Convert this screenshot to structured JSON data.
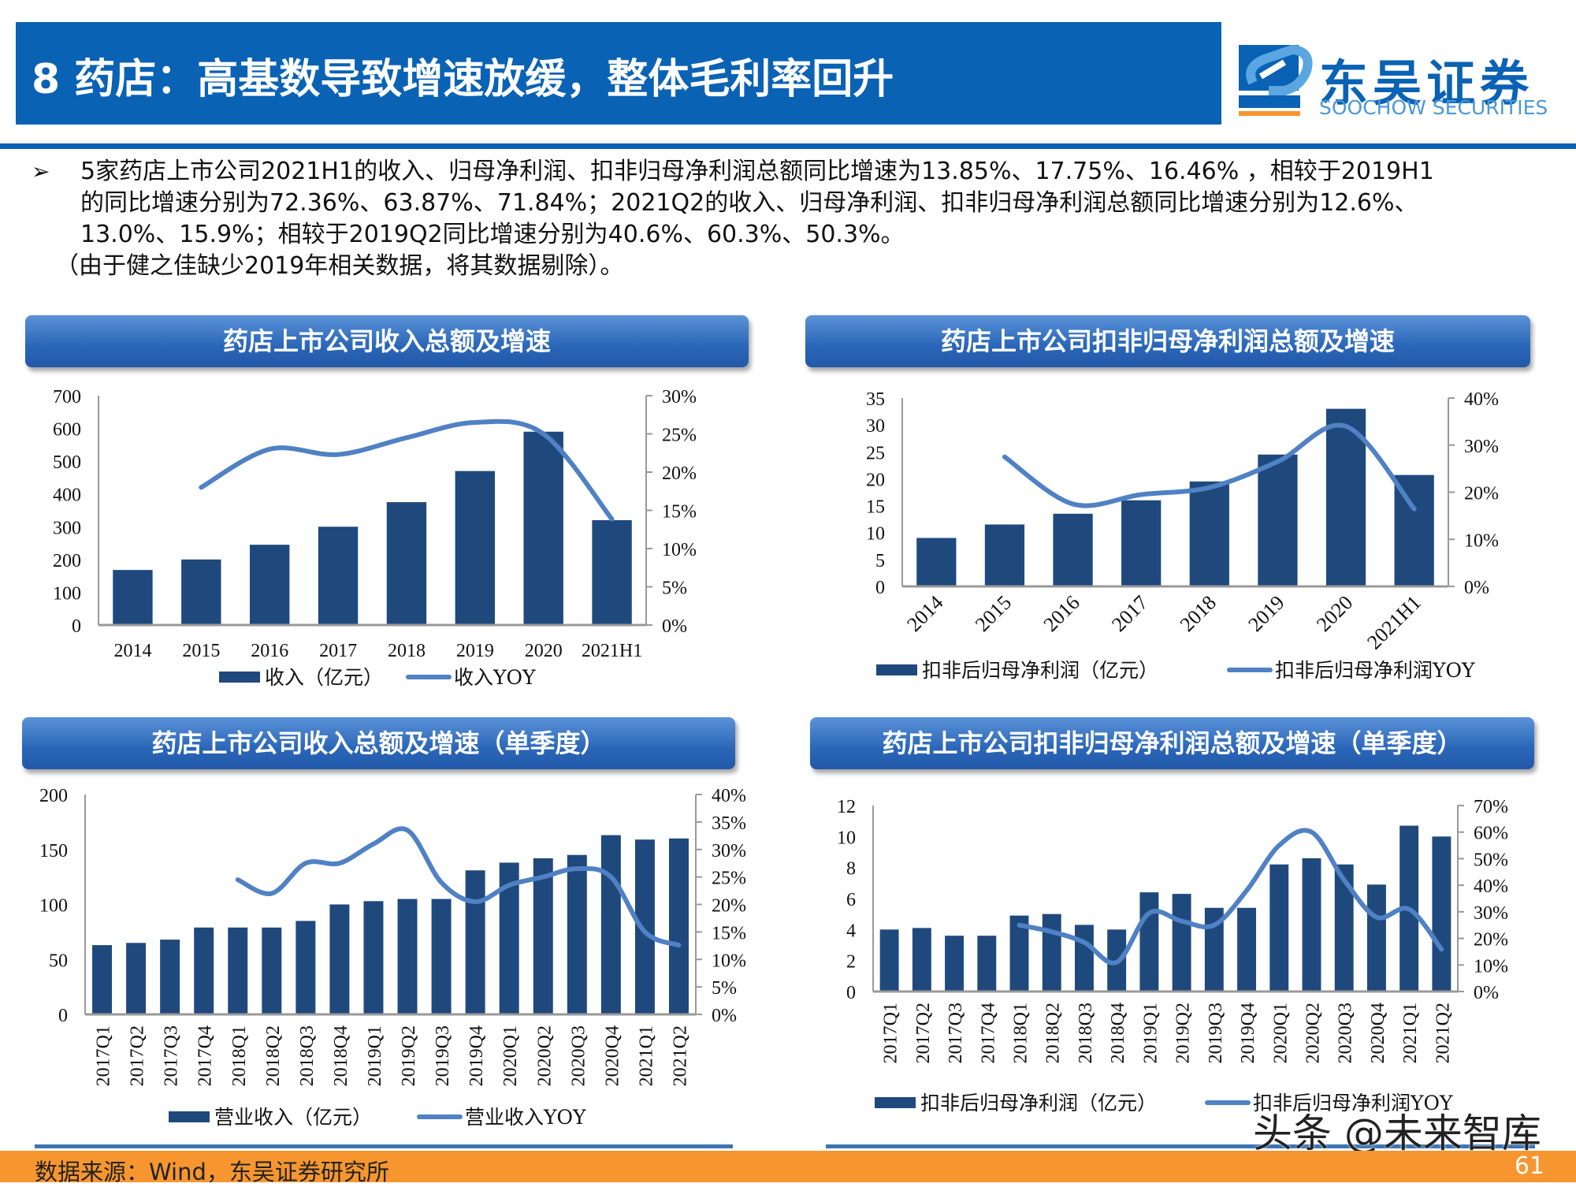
{
  "header": {
    "title": "8 药店：高基数导致增速放缓，整体毛利率回升",
    "logo_cn": "东吴证券",
    "logo_en": "SOOCHOW SECURITIES",
    "logo_mark": "SCS",
    "bullet": "➢"
  },
  "body": {
    "lines": [
      "5家药店上市公司2021H1的收入、归母净利润、扣非归母净利润总额同比增速为13.85%、17.75%、16.46% ，相较于2019H1",
      "的同比增速分别为72.36%、63.87%、71.84%；2021Q2的收入、归母净利润、扣非归母净利润总额同比增速分别为12.6%、",
      "13.0%、15.9%；相较于2019Q2同比增速分别为40.6%、60.3%、50.3%。"
    ],
    "note": "（由于健之佳缺少2019年相关数据，将其数据剔除）。"
  },
  "colors": {
    "bar": "#1f497d",
    "line": "#4f81c4",
    "header": "#0a62b4",
    "footer": "#f7962f"
  },
  "chart_data": [
    {
      "type": "bar+line",
      "title": "药店上市公司收入总额及增速",
      "categories": [
        "2014",
        "2015",
        "2016",
        "2017",
        "2018",
        "2019",
        "2020",
        "2021H1"
      ],
      "series": [
        {
          "name": "收入（亿元）",
          "type": "bar",
          "axis": "left",
          "values": [
            168,
            200,
            245,
            300,
            375,
            470,
            590,
            320
          ]
        },
        {
          "name": "收入YOY",
          "type": "line",
          "axis": "right",
          "values": [
            null,
            18.0,
            23.0,
            22.3,
            24.5,
            26.5,
            25.0,
            13.85
          ]
        }
      ],
      "y_left": {
        "range": [
          0,
          700
        ],
        "ticks": [
          "0",
          "100",
          "200",
          "300",
          "400",
          "500",
          "600",
          "700"
        ]
      },
      "y_right": {
        "range": [
          0,
          30
        ],
        "ticks": [
          "0%",
          "5%",
          "10%",
          "15%",
          "20%",
          "25%",
          "30%"
        ]
      },
      "legend": "bottom"
    },
    {
      "type": "bar+line",
      "title": "药店上市公司扣非归母净利润总额及增速",
      "categories": [
        "2014",
        "2015",
        "2016",
        "2017",
        "2018",
        "2019",
        "2020",
        "2021H1"
      ],
      "series": [
        {
          "name": "扣非后归母净利润（亿元）",
          "type": "bar",
          "axis": "left",
          "values": [
            9.0,
            11.5,
            13.5,
            16.0,
            19.5,
            24.5,
            33.0,
            20.7
          ]
        },
        {
          "name": "扣非后归母净利润YOY",
          "type": "line",
          "axis": "right",
          "values": [
            null,
            27.5,
            17.5,
            19.5,
            21.0,
            26.5,
            34.0,
            16.46
          ]
        }
      ],
      "y_left": {
        "range": [
          0,
          35
        ],
        "ticks": [
          "0",
          "5",
          "10",
          "15",
          "20",
          "25",
          "30",
          "35"
        ]
      },
      "y_right": {
        "range": [
          0,
          40
        ],
        "ticks": [
          "0%",
          "10%",
          "20%",
          "30%",
          "40%"
        ]
      },
      "legend": "bottom"
    },
    {
      "type": "bar+line",
      "title": "药店上市公司收入总额及增速（单季度）",
      "categories": [
        "2017Q1",
        "2017Q2",
        "2017Q3",
        "2017Q4",
        "2018Q1",
        "2018Q2",
        "2018Q3",
        "2018Q4",
        "2019Q1",
        "2019Q2",
        "2019Q3",
        "2019Q4",
        "2020Q1",
        "2020Q2",
        "2020Q3",
        "2020Q4",
        "2021Q1",
        "2021Q2"
      ],
      "series": [
        {
          "name": "营业收入（亿元）",
          "type": "bar",
          "axis": "left",
          "values": [
            63,
            65,
            68,
            79,
            79,
            79,
            85,
            100,
            103,
            105,
            105,
            131,
            138,
            142,
            145,
            163,
            159,
            160
          ]
        },
        {
          "name": "营业收入YOY",
          "type": "line",
          "axis": "right",
          "values": [
            null,
            null,
            null,
            null,
            24.5,
            22.0,
            27.5,
            27.5,
            31.0,
            33.5,
            24.0,
            20.5,
            23.5,
            25.0,
            26.5,
            25.0,
            15.0,
            12.6
          ]
        }
      ],
      "y_left": {
        "range": [
          0,
          200
        ],
        "ticks": [
          "0",
          "50",
          "100",
          "150",
          "200"
        ]
      },
      "y_right": {
        "range": [
          0,
          40
        ],
        "ticks": [
          "0%",
          "5%",
          "10%",
          "15%",
          "20%",
          "25%",
          "30%",
          "35%",
          "40%"
        ]
      },
      "legend": "bottom"
    },
    {
      "type": "bar+line",
      "title": "药店上市公司扣非归母净利润总额及增速（单季度）",
      "categories": [
        "2017Q1",
        "2017Q2",
        "2017Q3",
        "2017Q4",
        "2018Q1",
        "2018Q2",
        "2018Q3",
        "2018Q4",
        "2019Q1",
        "2019Q2",
        "2019Q3",
        "2019Q4",
        "2020Q1",
        "2020Q2",
        "2020Q3",
        "2020Q4",
        "2021Q1",
        "2021Q2"
      ],
      "series": [
        {
          "name": "扣非后归母净利润（亿元）",
          "type": "bar",
          "axis": "left",
          "values": [
            4.0,
            4.1,
            3.6,
            3.6,
            4.9,
            5.0,
            4.3,
            4.0,
            6.4,
            6.3,
            5.4,
            5.4,
            8.2,
            8.6,
            8.2,
            6.9,
            10.7,
            10.0
          ]
        },
        {
          "name": "扣非后归母净利润YOY",
          "type": "line",
          "axis": "right",
          "values": [
            null,
            null,
            null,
            null,
            25.0,
            22.5,
            18.5,
            11.0,
            29.5,
            26.5,
            25.0,
            38.0,
            55.0,
            60.0,
            42.0,
            28.0,
            31.0,
            15.9
          ]
        }
      ],
      "y_left": {
        "range": [
          0,
          12
        ],
        "ticks": [
          "0",
          "2",
          "4",
          "6",
          "8",
          "10",
          "12"
        ]
      },
      "y_right": {
        "range": [
          0,
          70
        ],
        "ticks": [
          "0%",
          "10%",
          "20%",
          "30%",
          "40%",
          "50%",
          "60%",
          "70%"
        ]
      },
      "legend": "bottom"
    }
  ],
  "footer": {
    "source": "数据来源：Wind，东吴证券研究所",
    "page": "61",
    "watermark": "头条 @未来智库"
  }
}
